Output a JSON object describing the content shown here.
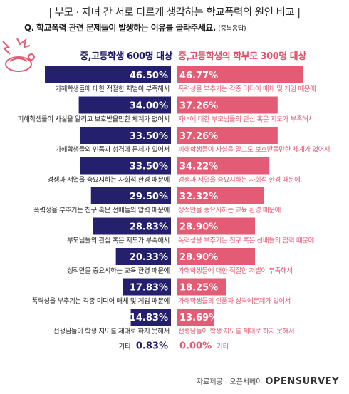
{
  "title": "| 부모 · 자녀 간 서로 다르게 생각하는 학교폭력의 원인 비교 |",
  "question": "Q. 학교폭력 관련 문제들이 발생하는 이유를 골라주세요.",
  "question_note": "(중복응답)",
  "source_label": "자료제공 : 오픈서베이",
  "source_logo": "OPENSURVEY",
  "colors": {
    "students": "#25206e",
    "parents": "#e35b74",
    "text_left": "#2a2a2a",
    "text_right": "#e35b74"
  },
  "chart_data": {
    "type": "bar",
    "orientation": "horizontal-back-to-back",
    "series": [
      {
        "name": "중,고등학생 600명 대상",
        "items": [
          {
            "label": "가해학생들에 대한 적절한 처벌이 부족해서",
            "value": 46.5
          },
          {
            "label": "피해학생들이 사실을 알리고 보호받을만한 체계가 없어서",
            "value": 34.0
          },
          {
            "label": "가해학생들의 인품과 성격에 문제가 있어서",
            "value": 33.5
          },
          {
            "label": "경쟁과 서열을 중요시하는 사회적 환경 때문에",
            "value": 33.5
          },
          {
            "label": "폭력성을 부추기는 친구 혹은 선배들의 압력 때문에",
            "value": 29.5
          },
          {
            "label": "부모님들의 관심 혹은 지도가 부족해서",
            "value": 28.83
          },
          {
            "label": "성적만을 중요시하는 교육 환경 때문에",
            "value": 20.33
          },
          {
            "label": "폭력성을 부추기는 각종 미디어 매체 및 게임 때문에",
            "value": 17.83
          },
          {
            "label": "선생님들이 학생 지도를 제대로 하지 못해서",
            "value": 14.83
          },
          {
            "label": "기타",
            "value": 0.83
          }
        ]
      },
      {
        "name": "중,고등학생의 학부모 300명 대상",
        "items": [
          {
            "label": "폭력성을 부추기는 각종 미디어 매체 및 게임 때문에",
            "value": 46.77
          },
          {
            "label": "자녀에 대한 부모님들의 관심 혹은 지도가 부족해서",
            "value": 37.26
          },
          {
            "label": "피해학생들이 사실을 알고도 보호받을만한 체계가 없어서",
            "value": 37.26
          },
          {
            "label": "경쟁과 서열을 중요시하는 사회적 환경 때문에",
            "value": 34.22
          },
          {
            "label": "성적만을 중요시하는 교육 환경 때문에",
            "value": 32.32
          },
          {
            "label": "폭력성을 부추기는 친구 혹은 선배들의 압력 때문에",
            "value": 28.9
          },
          {
            "label": "가해학생들에 대한 적절한 처벌이 부족해서",
            "value": 28.9
          },
          {
            "label": "가해학생들의 인품과 성격에문제가 있어서",
            "value": 18.25
          },
          {
            "label": "선생님들이 학생 지도를 제대로 하지 못해서",
            "value": 13.69
          },
          {
            "label": "기타",
            "value": 0.0
          }
        ]
      }
    ]
  }
}
